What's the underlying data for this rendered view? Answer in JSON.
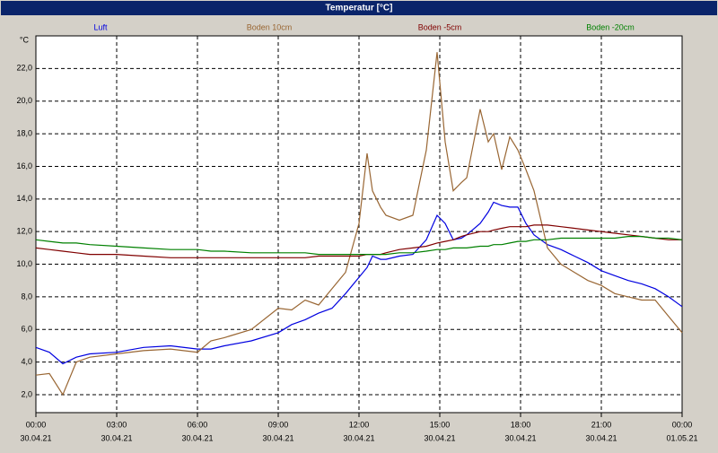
{
  "chart_data": {
    "type": "line",
    "title": "Temperatur [°C]",
    "y_unit": "°C",
    "x": [
      0,
      0.5,
      1,
      1.5,
      2,
      3,
      4,
      5,
      6,
      6.5,
      7,
      8,
      9,
      9.5,
      10,
      10.5,
      11,
      11.5,
      12,
      12.3,
      12.5,
      12.8,
      13,
      13.5,
      14,
      14.5,
      14.9,
      15.2,
      15.5,
      15.8,
      16,
      16.5,
      16.8,
      17,
      17.3,
      17.6,
      17.9,
      18.2,
      18.5,
      19,
      19.5,
      20,
      20.5,
      21,
      21.5,
      22,
      22.5,
      23,
      23.5,
      24
    ],
    "series": [
      {
        "name": "Luft",
        "color": "#0000e0",
        "values": [
          4.9,
          4.6,
          3.9,
          4.3,
          4.5,
          4.6,
          4.9,
          5.0,
          4.8,
          4.8,
          5.0,
          5.3,
          5.8,
          6.3,
          6.6,
          7.0,
          7.3,
          8.2,
          9.2,
          9.8,
          10.5,
          10.3,
          10.3,
          10.5,
          10.6,
          11.5,
          13.0,
          12.5,
          11.5,
          11.6,
          11.8,
          12.5,
          13.2,
          13.8,
          13.6,
          13.5,
          13.5,
          12.5,
          11.8,
          11.2,
          10.9,
          10.5,
          10.1,
          9.6,
          9.3,
          9.0,
          8.8,
          8.5,
          8.0,
          7.4
        ]
      },
      {
        "name": "Boden 10cm",
        "color": "#996633",
        "values": [
          3.2,
          3.3,
          2.0,
          4.0,
          4.3,
          4.5,
          4.7,
          4.8,
          4.6,
          5.3,
          5.5,
          6.0,
          7.3,
          7.2,
          7.8,
          7.5,
          8.5,
          9.5,
          12.5,
          16.8,
          14.5,
          13.5,
          13.0,
          12.7,
          13.0,
          17.0,
          23.0,
          17.5,
          14.5,
          15.0,
          15.3,
          19.5,
          17.5,
          18.0,
          15.8,
          17.8,
          17.0,
          15.8,
          14.5,
          11.0,
          10.0,
          9.5,
          9.0,
          8.7,
          8.2,
          8.0,
          7.8,
          7.8,
          6.8,
          5.8
        ]
      },
      {
        "name": "Boden -5cm",
        "color": "#800000",
        "values": [
          11.0,
          10.9,
          10.8,
          10.7,
          10.6,
          10.6,
          10.5,
          10.4,
          10.4,
          10.4,
          10.4,
          10.4,
          10.4,
          10.4,
          10.4,
          10.5,
          10.5,
          10.5,
          10.5,
          10.6,
          10.6,
          10.6,
          10.7,
          10.9,
          11.0,
          11.1,
          11.3,
          11.4,
          11.5,
          11.7,
          11.8,
          12.0,
          12.0,
          12.1,
          12.2,
          12.3,
          12.3,
          12.3,
          12.4,
          12.4,
          12.3,
          12.2,
          12.1,
          12.0,
          11.9,
          11.8,
          11.7,
          11.6,
          11.5,
          11.5
        ]
      },
      {
        "name": "Boden -20cm",
        "color": "#008000",
        "values": [
          11.5,
          11.4,
          11.3,
          11.3,
          11.2,
          11.1,
          11.0,
          10.9,
          10.9,
          10.8,
          10.8,
          10.7,
          10.7,
          10.7,
          10.7,
          10.6,
          10.6,
          10.6,
          10.6,
          10.6,
          10.6,
          10.6,
          10.6,
          10.7,
          10.7,
          10.8,
          10.9,
          10.9,
          11.0,
          11.0,
          11.0,
          11.1,
          11.1,
          11.2,
          11.2,
          11.3,
          11.4,
          11.4,
          11.5,
          11.5,
          11.6,
          11.6,
          11.6,
          11.6,
          11.6,
          11.7,
          11.7,
          11.6,
          11.6,
          11.5
        ]
      }
    ],
    "xlim": [
      0,
      24
    ],
    "xticks": [
      {
        "value": 0,
        "label": "00:00"
      },
      {
        "value": 3,
        "label": "03:00"
      },
      {
        "value": 6,
        "label": "06:00"
      },
      {
        "value": 9,
        "label": "09:00"
      },
      {
        "value": 12,
        "label": "12:00"
      },
      {
        "value": 15,
        "label": "15:00"
      },
      {
        "value": 18,
        "label": "18:00"
      },
      {
        "value": 21,
        "label": "21:00"
      },
      {
        "value": 24,
        "label": "00:00"
      }
    ],
    "xtick_dates": [
      "30.04.21",
      "30.04.21",
      "30.04.21",
      "30.04.21",
      "30.04.21",
      "30.04.21",
      "30.04.21",
      "30.04.21",
      "01.05.21"
    ],
    "ylim": [
      0.9,
      24
    ],
    "yticks": [
      {
        "value": 2,
        "label": "2,0"
      },
      {
        "value": 4,
        "label": "4,0"
      },
      {
        "value": 6,
        "label": "6,0"
      },
      {
        "value": 8,
        "label": "8,0"
      },
      {
        "value": 10,
        "label": "10,0"
      },
      {
        "value": 12,
        "label": "12,0"
      },
      {
        "value": 14,
        "label": "14,0"
      },
      {
        "value": 16,
        "label": "16,0"
      },
      {
        "value": 18,
        "label": "18,0"
      },
      {
        "value": 20,
        "label": "20,0"
      },
      {
        "value": 22,
        "label": "22,0"
      }
    ],
    "grid": true
  }
}
